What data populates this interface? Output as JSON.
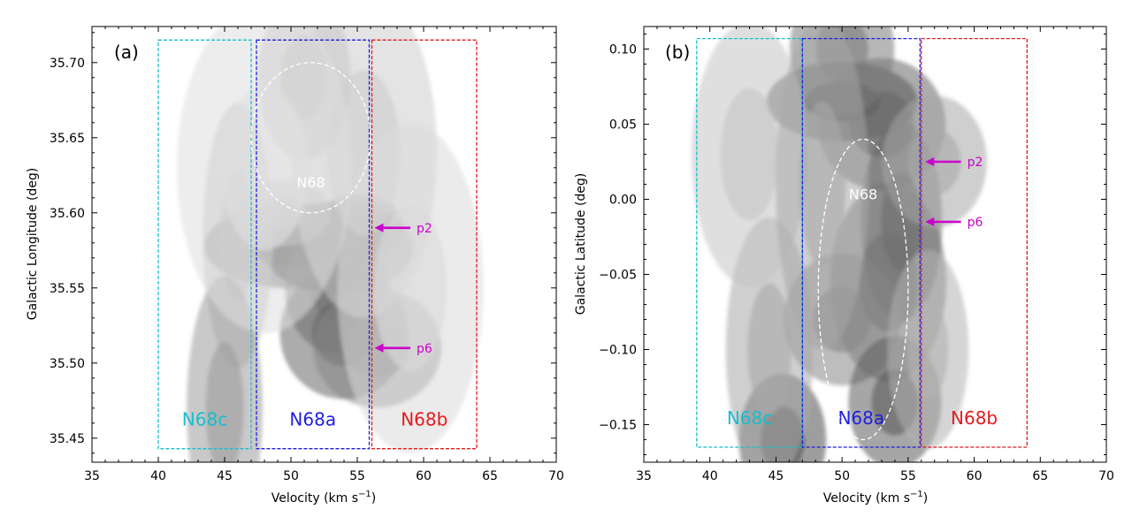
{
  "chart_data": [
    {
      "type": "heatmap",
      "panel_label": "(a)",
      "xlabel": "Velocity (km s",
      "xlabel_sup": "−1",
      "xlabel_end": ")",
      "ylabel": "Galactic Longitude (deg)",
      "xlim": [
        35,
        70
      ],
      "ylim": [
        35.434,
        35.724
      ],
      "xticks": [
        35,
        40,
        45,
        50,
        55,
        60,
        65,
        70
      ],
      "xtick_labels": [
        "35",
        "40",
        "45",
        "50",
        "55",
        "60",
        "65",
        "70"
      ],
      "yticks": [
        35.45,
        35.5,
        35.55,
        35.6,
        35.65,
        35.7
      ],
      "ytick_labels": [
        "35.45",
        "35.50",
        "35.55",
        "35.60",
        "35.65",
        "35.70"
      ],
      "boxes": [
        {
          "name": "N68c",
          "label": "N68c",
          "color": "#17becf",
          "v": [
            40,
            47
          ],
          "pos": [
            35.443,
            35.715
          ]
        },
        {
          "name": "N68a",
          "label": "N68a",
          "color": "#1f1fe0",
          "v": [
            47.4,
            55.9
          ],
          "pos": [
            35.443,
            35.715
          ]
        },
        {
          "name": "N68b",
          "label": "N68b",
          "color": "#e31a1c",
          "v": [
            56.1,
            64
          ],
          "pos": [
            35.443,
            35.715
          ]
        }
      ],
      "ellipse": {
        "label": "N68",
        "center": [
          51.5,
          35.65
        ],
        "half_width": [
          4.5,
          0.05
        ]
      },
      "arrows": [
        {
          "label": "p2",
          "from_v": 59,
          "to_v": 56.3,
          "pos": 35.59
        },
        {
          "label": "p6",
          "from_v": 59,
          "to_v": 56.3,
          "pos": 35.51
        }
      ],
      "emission_peaks": [
        {
          "v": 53.5,
          "pos": 35.577,
          "sv": 2.6,
          "sp": 0.014,
          "i": 0.95
        },
        {
          "v": 50.5,
          "pos": 35.578,
          "sv": 3.2,
          "sp": 0.013,
          "i": 0.7
        },
        {
          "v": 55,
          "pos": 35.59,
          "sv": 1.6,
          "sp": 0.01,
          "i": 0.6
        },
        {
          "v": 53.5,
          "pos": 35.55,
          "sv": 1.8,
          "sp": 0.02,
          "i": 0.55
        },
        {
          "v": 54,
          "pos": 35.52,
          "sv": 2.2,
          "sp": 0.02,
          "i": 0.65
        },
        {
          "v": 56.5,
          "pos": 35.51,
          "sv": 2.2,
          "sp": 0.018,
          "i": 0.5
        },
        {
          "v": 49.5,
          "pos": 35.6,
          "sv": 1.6,
          "sp": 0.01,
          "i": 0.3
        },
        {
          "v": 46,
          "pos": 35.585,
          "sv": 1.2,
          "sp": 0.04,
          "i": 0.25
        },
        {
          "v": 45,
          "pos": 35.47,
          "sv": 1.3,
          "sp": 0.04,
          "i": 0.4
        },
        {
          "v": 51,
          "pos": 35.69,
          "sv": 1.6,
          "sp": 0.025,
          "i": 0.25
        },
        {
          "v": 55.5,
          "pos": 35.64,
          "sv": 2.5,
          "sp": 0.05,
          "i": 0.18
        },
        {
          "v": 48,
          "pos": 35.63,
          "sv": 3,
          "sp": 0.05,
          "i": 0.1
        },
        {
          "v": 59,
          "pos": 35.55,
          "sv": 2.5,
          "sp": 0.05,
          "i": 0.12
        }
      ]
    },
    {
      "type": "heatmap",
      "panel_label": "(b)",
      "xlabel": "Velocity (km s",
      "xlabel_sup": "−1",
      "xlabel_end": ")",
      "ylabel": "Galactic Latitude (deg)",
      "xlim": [
        35,
        70
      ],
      "ylim": [
        -0.175,
        0.115
      ],
      "xticks": [
        35,
        40,
        45,
        50,
        55,
        60,
        65,
        70
      ],
      "xtick_labels": [
        "35",
        "40",
        "45",
        "50",
        "55",
        "60",
        "65",
        "70"
      ],
      "yticks": [
        -0.15,
        -0.1,
        -0.05,
        0.0,
        0.05,
        0.1
      ],
      "ytick_labels": [
        "−0.15",
        "−0.10",
        "−0.05",
        "0.00",
        "0.05",
        "0.10"
      ],
      "boxes": [
        {
          "name": "N68c",
          "label": "N68c",
          "color": "#17becf",
          "v": [
            39,
            47
          ],
          "pos": [
            -0.165,
            0.107
          ]
        },
        {
          "name": "N68a",
          "label": "N68a",
          "color": "#1f1fe0",
          "v": [
            47,
            55.9
          ],
          "pos": [
            -0.165,
            0.107
          ]
        },
        {
          "name": "N68b",
          "label": "N68b",
          "color": "#e31a1c",
          "v": [
            56,
            64
          ],
          "pos": [
            -0.165,
            0.107
          ]
        }
      ],
      "ellipse": {
        "label": "N68",
        "center": [
          51.6,
          -0.06
        ],
        "half_width": [
          3.4,
          0.1
        ]
      },
      "arrows": [
        {
          "label": "p2",
          "from_v": 59,
          "to_v": 56.3,
          "pos": 0.025
        },
        {
          "label": "p6",
          "from_v": 59,
          "to_v": 56.3,
          "pos": -0.015
        }
      ],
      "emission_peaks": [
        {
          "v": 50,
          "pos": 0.065,
          "sv": 2.6,
          "sp": 0.012,
          "i": 0.8
        },
        {
          "v": 53,
          "pos": 0.05,
          "sv": 2.2,
          "sp": 0.02,
          "i": 0.65
        },
        {
          "v": 50,
          "pos": 0.1,
          "sv": 1.8,
          "sp": 0.02,
          "i": 0.55
        },
        {
          "v": 54.5,
          "pos": -0.015,
          "sv": 1.4,
          "sp": 0.03,
          "i": 0.65
        },
        {
          "v": 53.5,
          "pos": -0.055,
          "sv": 2,
          "sp": 0.03,
          "i": 0.6
        },
        {
          "v": 50,
          "pos": -0.08,
          "sv": 2,
          "sp": 0.02,
          "i": 0.5
        },
        {
          "v": 54,
          "pos": -0.135,
          "sv": 1.6,
          "sp": 0.02,
          "i": 0.7
        },
        {
          "v": 45.5,
          "pos": -0.16,
          "sv": 1.5,
          "sp": 0.02,
          "i": 0.75
        },
        {
          "v": 44.5,
          "pos": -0.1,
          "sv": 1.5,
          "sp": 0.04,
          "i": 0.35
        },
        {
          "v": 57,
          "pos": 0.025,
          "sv": 1.8,
          "sp": 0.02,
          "i": 0.35
        },
        {
          "v": 56.5,
          "pos": -0.1,
          "sv": 1.4,
          "sp": 0.03,
          "i": 0.3
        },
        {
          "v": 43,
          "pos": 0.03,
          "sv": 2,
          "sp": 0.04,
          "i": 0.22
        },
        {
          "v": 48.5,
          "pos": 0.01,
          "sv": 1.6,
          "sp": 0.05,
          "i": 0.35
        }
      ]
    }
  ]
}
